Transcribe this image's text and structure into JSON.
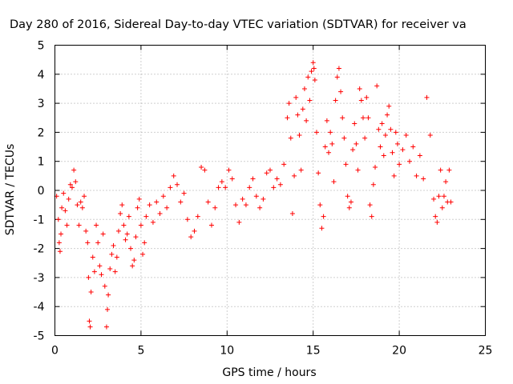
{
  "chart_data": {
    "type": "scatter",
    "title": "Day 280 of 2016, Sidereal Day-to-day VTEC variation (SDTVAR) for receiver va",
    "xlabel": "GPS time / hours",
    "ylabel": "SDTVAR / TECUs",
    "xlim": [
      0,
      25
    ],
    "ylim": [
      -5,
      5
    ],
    "xticks": [
      0,
      5,
      10,
      15,
      20,
      25
    ],
    "yticks": [
      -5,
      -4,
      -3,
      -2,
      -1,
      0,
      1,
      2,
      3,
      4,
      5
    ],
    "x_tick_labels": [
      "0",
      "5",
      "10",
      "15",
      "20",
      "25"
    ],
    "y_tick_labels": [
      "-5",
      "-4",
      "-3",
      "-2",
      "-1",
      "0",
      "1",
      "2",
      "3",
      "4",
      "5"
    ],
    "grid": true,
    "legend": "none",
    "marker": "+",
    "color": "#ff0000",
    "series": [
      {
        "values": [
          [
            0.1,
            -0.2
          ],
          [
            0.2,
            -1.0
          ],
          [
            0.25,
            -1.8
          ],
          [
            0.3,
            -2.1
          ],
          [
            0.35,
            -1.5
          ],
          [
            0.4,
            -0.6
          ],
          [
            0.5,
            -0.1
          ],
          [
            0.6,
            -0.7
          ],
          [
            0.7,
            -1.2
          ],
          [
            0.8,
            -0.3
          ],
          [
            0.9,
            0.2
          ],
          [
            1.0,
            0.1
          ],
          [
            1.1,
            0.7
          ],
          [
            1.2,
            0.3
          ],
          [
            1.3,
            -0.5
          ],
          [
            1.4,
            -1.2
          ],
          [
            1.5,
            -0.4
          ],
          [
            1.6,
            -0.6
          ],
          [
            1.7,
            -0.2
          ],
          [
            1.8,
            -1.4
          ],
          [
            1.9,
            -1.8
          ],
          [
            1.95,
            -3.0
          ],
          [
            2.0,
            -4.5
          ],
          [
            2.05,
            -4.7
          ],
          [
            2.1,
            -3.5
          ],
          [
            2.2,
            -2.3
          ],
          [
            2.3,
            -2.8
          ],
          [
            2.4,
            -1.2
          ],
          [
            2.5,
            -1.8
          ],
          [
            2.6,
            -2.6
          ],
          [
            2.7,
            -2.9
          ],
          [
            2.8,
            -1.5
          ],
          [
            2.9,
            -3.3
          ],
          [
            3.0,
            -4.7
          ],
          [
            3.05,
            -4.1
          ],
          [
            3.1,
            -3.6
          ],
          [
            3.2,
            -2.7
          ],
          [
            3.3,
            -2.2
          ],
          [
            3.4,
            -1.9
          ],
          [
            3.5,
            -2.8
          ],
          [
            3.6,
            -2.3
          ],
          [
            3.7,
            -1.4
          ],
          [
            3.8,
            -0.8
          ],
          [
            3.9,
            -0.5
          ],
          [
            4.0,
            -1.2
          ],
          [
            4.1,
            -1.7
          ],
          [
            4.2,
            -1.5
          ],
          [
            4.3,
            -0.9
          ],
          [
            4.4,
            -2.0
          ],
          [
            4.5,
            -2.6
          ],
          [
            4.6,
            -2.4
          ],
          [
            4.7,
            -1.6
          ],
          [
            4.8,
            -0.6
          ],
          [
            4.9,
            -0.3
          ],
          [
            5.0,
            -1.2
          ],
          [
            5.1,
            -2.2
          ],
          [
            5.2,
            -1.8
          ],
          [
            5.3,
            -0.9
          ],
          [
            5.5,
            -0.5
          ],
          [
            5.7,
            -1.1
          ],
          [
            5.9,
            -0.4
          ],
          [
            6.1,
            -0.8
          ],
          [
            6.3,
            -0.2
          ],
          [
            6.5,
            -0.6
          ],
          [
            6.7,
            0.1
          ],
          [
            6.9,
            0.5
          ],
          [
            7.1,
            0.2
          ],
          [
            7.3,
            -0.4
          ],
          [
            7.5,
            -0.1
          ],
          [
            7.7,
            -1.0
          ],
          [
            7.9,
            -1.6
          ],
          [
            8.1,
            -1.4
          ],
          [
            8.3,
            -0.9
          ],
          [
            8.5,
            0.8
          ],
          [
            8.7,
            0.7
          ],
          [
            8.9,
            -0.4
          ],
          [
            9.1,
            -1.2
          ],
          [
            9.3,
            -0.6
          ],
          [
            9.5,
            0.1
          ],
          [
            9.7,
            0.3
          ],
          [
            9.9,
            0.1
          ],
          [
            10.1,
            0.7
          ],
          [
            10.3,
            0.4
          ],
          [
            10.5,
            -0.5
          ],
          [
            10.7,
            -1.1
          ],
          [
            10.9,
            -0.3
          ],
          [
            11.1,
            -0.5
          ],
          [
            11.3,
            0.1
          ],
          [
            11.5,
            0.4
          ],
          [
            11.7,
            -0.2
          ],
          [
            11.9,
            -0.6
          ],
          [
            12.1,
            -0.3
          ],
          [
            12.3,
            0.6
          ],
          [
            12.5,
            0.7
          ],
          [
            12.7,
            0.1
          ],
          [
            12.9,
            0.4
          ],
          [
            13.1,
            0.2
          ],
          [
            13.3,
            0.9
          ],
          [
            13.5,
            2.5
          ],
          [
            13.6,
            3.0
          ],
          [
            13.7,
            1.8
          ],
          [
            13.8,
            -0.8
          ],
          [
            13.9,
            0.5
          ],
          [
            14.0,
            3.2
          ],
          [
            14.1,
            2.6
          ],
          [
            14.2,
            1.9
          ],
          [
            14.3,
            0.7
          ],
          [
            14.4,
            2.8
          ],
          [
            14.5,
            3.5
          ],
          [
            14.6,
            2.4
          ],
          [
            14.7,
            3.9
          ],
          [
            14.8,
            3.1
          ],
          [
            14.9,
            4.1
          ],
          [
            15.0,
            4.4
          ],
          [
            15.05,
            4.2
          ],
          [
            15.1,
            3.8
          ],
          [
            15.2,
            2.0
          ],
          [
            15.3,
            0.6
          ],
          [
            15.4,
            -0.5
          ],
          [
            15.5,
            -1.3
          ],
          [
            15.6,
            -0.9
          ],
          [
            15.7,
            1.5
          ],
          [
            15.8,
            2.4
          ],
          [
            15.9,
            1.3
          ],
          [
            16.0,
            2.0
          ],
          [
            16.1,
            1.6
          ],
          [
            16.2,
            0.3
          ],
          [
            16.3,
            3.1
          ],
          [
            16.4,
            3.9
          ],
          [
            16.5,
            4.2
          ],
          [
            16.6,
            3.4
          ],
          [
            16.7,
            2.5
          ],
          [
            16.8,
            1.8
          ],
          [
            16.9,
            0.9
          ],
          [
            17.0,
            -0.2
          ],
          [
            17.1,
            -0.6
          ],
          [
            17.2,
            -0.4
          ],
          [
            17.3,
            1.4
          ],
          [
            17.4,
            2.3
          ],
          [
            17.5,
            1.6
          ],
          [
            17.6,
            0.7
          ],
          [
            17.7,
            3.5
          ],
          [
            17.8,
            3.1
          ],
          [
            17.9,
            2.5
          ],
          [
            18.0,
            1.8
          ],
          [
            18.1,
            3.2
          ],
          [
            18.2,
            2.5
          ],
          [
            18.3,
            -0.5
          ],
          [
            18.4,
            -0.9
          ],
          [
            18.5,
            0.2
          ],
          [
            18.6,
            0.8
          ],
          [
            18.7,
            3.6
          ],
          [
            18.8,
            2.1
          ],
          [
            18.9,
            1.5
          ],
          [
            19.0,
            2.3
          ],
          [
            19.1,
            1.2
          ],
          [
            19.2,
            1.9
          ],
          [
            19.3,
            2.6
          ],
          [
            19.4,
            2.9
          ],
          [
            19.5,
            2.1
          ],
          [
            19.6,
            1.3
          ],
          [
            19.7,
            0.5
          ],
          [
            19.8,
            2.0
          ],
          [
            19.9,
            1.6
          ],
          [
            20.0,
            0.9
          ],
          [
            20.2,
            1.4
          ],
          [
            20.4,
            1.9
          ],
          [
            20.6,
            1.0
          ],
          [
            20.8,
            1.5
          ],
          [
            21.0,
            0.5
          ],
          [
            21.2,
            1.2
          ],
          [
            21.4,
            0.4
          ],
          [
            21.6,
            3.2
          ],
          [
            21.8,
            1.9
          ],
          [
            22.0,
            -0.3
          ],
          [
            22.1,
            -0.9
          ],
          [
            22.2,
            -1.1
          ],
          [
            22.3,
            -0.2
          ],
          [
            22.4,
            0.7
          ],
          [
            22.5,
            -0.6
          ],
          [
            22.6,
            -0.2
          ],
          [
            22.7,
            0.3
          ],
          [
            22.8,
            -0.4
          ],
          [
            22.9,
            0.7
          ],
          [
            23.0,
            -0.4
          ]
        ]
      }
    ]
  }
}
